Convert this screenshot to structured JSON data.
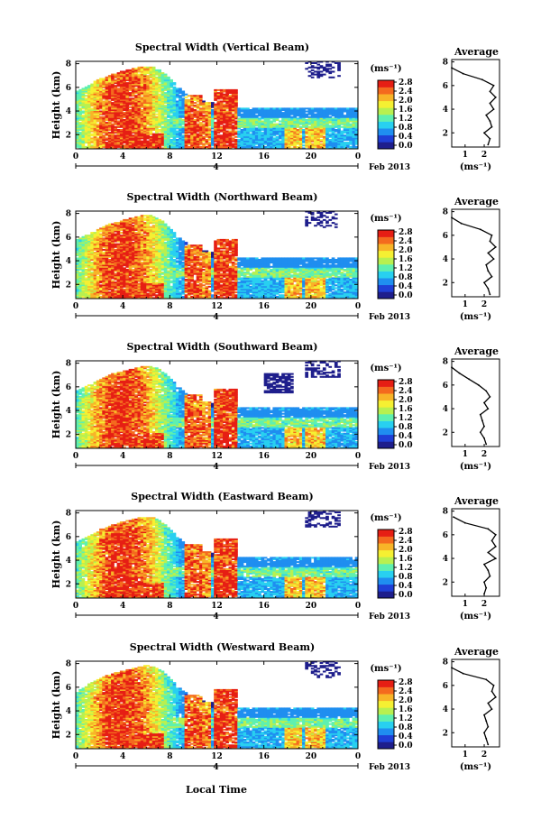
{
  "figure": {
    "x_label": "Local Time",
    "date_label": "Feb 2013",
    "day_marker": "4",
    "y_label": "Height (km)",
    "unit_label": "(ms⁻¹)",
    "average_title": "Average",
    "cbar_ticks": [
      "2.8",
      "2.4",
      "2.0",
      "1.6",
      "1.2",
      "0.8",
      "0.4",
      "0.0"
    ]
  },
  "colormap": [
    "#1e1e8c",
    "#1f3fd6",
    "#1f8ef0",
    "#28d0f0",
    "#5ef0b0",
    "#b8f050",
    "#f5f032",
    "#f8b428",
    "#f46a1e",
    "#e61e14"
  ],
  "chart_data": [
    {
      "type": "heatmap",
      "title": "Spectral Width (Vertical Beam)",
      "x_ticks": [
        "0",
        "4",
        "8",
        "12",
        "16",
        "20",
        "0"
      ],
      "y_ticks": [
        "2",
        "4",
        "6",
        "8"
      ],
      "xlim": [
        0,
        24
      ],
      "ylim": [
        0.8,
        8.2
      ],
      "colorbar": {
        "label": "(ms⁻¹)",
        "range": [
          0.0,
          2.8
        ]
      },
      "profile": {
        "title": "Average",
        "xlabel": "(ms⁻¹)",
        "x_ticks": [
          "1",
          "2"
        ],
        "y_ticks": [
          "2",
          "4",
          "6",
          "8"
        ],
        "height": [
          1.0,
          1.5,
          2.0,
          2.5,
          3.0,
          3.5,
          4.0,
          4.5,
          5.0,
          5.5,
          6.0,
          6.5,
          7.0,
          7.5
        ],
        "width": [
          2.2,
          2.3,
          2.0,
          2.4,
          2.3,
          2.1,
          2.5,
          2.3,
          2.6,
          2.3,
          2.5,
          1.9,
          0.9,
          0.3
        ]
      }
    },
    {
      "type": "heatmap",
      "title": "Spectral Width (Northward Beam)",
      "x_ticks": [
        "0",
        "4",
        "8",
        "12",
        "16",
        "20",
        "0"
      ],
      "y_ticks": [
        "2",
        "4",
        "6",
        "8"
      ],
      "xlim": [
        0,
        24
      ],
      "ylim": [
        0.8,
        8.2
      ],
      "colorbar": {
        "label": "(ms⁻¹)",
        "range": [
          0.0,
          2.8
        ]
      },
      "profile": {
        "title": "Average",
        "xlabel": "(ms⁻¹)",
        "x_ticks": [
          "1",
          "2"
        ],
        "y_ticks": [
          "2",
          "4",
          "6",
          "8"
        ],
        "height": [
          1.0,
          1.5,
          2.0,
          2.5,
          3.0,
          3.5,
          4.0,
          4.5,
          5.0,
          5.5,
          6.0,
          6.5,
          7.0,
          7.5
        ],
        "width": [
          2.3,
          2.2,
          2.0,
          2.4,
          2.2,
          2.1,
          2.5,
          2.2,
          2.6,
          2.3,
          2.4,
          1.8,
          0.8,
          0.3
        ]
      }
    },
    {
      "type": "heatmap",
      "title": "Spectral Width (Southward Beam)",
      "x_ticks": [
        "0",
        "4",
        "8",
        "12",
        "16",
        "20",
        "0"
      ],
      "y_ticks": [
        "2",
        "4",
        "6",
        "8"
      ],
      "xlim": [
        0,
        24
      ],
      "ylim": [
        0.8,
        8.2
      ],
      "colorbar": {
        "label": "(ms⁻¹)",
        "range": [
          0.0,
          2.8
        ]
      },
      "profile": {
        "title": "Average",
        "xlabel": "(ms⁻¹)",
        "x_ticks": [
          "1",
          "2"
        ],
        "y_ticks": [
          "2",
          "4",
          "6",
          "8"
        ],
        "height": [
          1.0,
          1.5,
          2.0,
          2.5,
          3.0,
          3.5,
          4.0,
          4.5,
          5.0,
          5.5,
          6.0,
          6.5,
          7.0,
          7.5
        ],
        "width": [
          2.1,
          2.0,
          1.8,
          2.0,
          1.9,
          1.8,
          2.2,
          2.0,
          2.3,
          2.1,
          1.7,
          1.2,
          0.7,
          0.3
        ]
      }
    },
    {
      "type": "heatmap",
      "title": "Spectral Width (Eastward Beam)",
      "x_ticks": [
        "0",
        "4",
        "8",
        "12",
        "16",
        "20",
        "0"
      ],
      "y_ticks": [
        "2",
        "4",
        "6",
        "8"
      ],
      "xlim": [
        0,
        24
      ],
      "ylim": [
        0.8,
        8.2
      ],
      "colorbar": {
        "label": "(ms⁻¹)",
        "range": [
          0.0,
          2.8
        ]
      },
      "profile": {
        "title": "Average",
        "xlabel": "(ms⁻¹)",
        "x_ticks": [
          "1",
          "2"
        ],
        "y_ticks": [
          "2",
          "4",
          "6",
          "8"
        ],
        "height": [
          1.0,
          1.5,
          2.0,
          2.5,
          3.0,
          3.5,
          4.0,
          4.5,
          5.0,
          5.5,
          6.0,
          6.5,
          7.0,
          7.5
        ],
        "width": [
          2.0,
          2.1,
          2.0,
          2.3,
          2.2,
          2.0,
          2.6,
          2.2,
          2.6,
          2.4,
          2.6,
          2.2,
          1.0,
          0.4
        ]
      }
    },
    {
      "type": "heatmap",
      "title": "Spectral Width (Westward Beam)",
      "x_ticks": [
        "0",
        "4",
        "8",
        "12",
        "16",
        "20",
        "0"
      ],
      "y_ticks": [
        "2",
        "4",
        "6",
        "8"
      ],
      "xlim": [
        0,
        24
      ],
      "ylim": [
        0.8,
        8.2
      ],
      "colorbar": {
        "label": "(ms⁻¹)",
        "range": [
          0.0,
          2.8
        ]
      },
      "profile": {
        "title": "Average",
        "xlabel": "(ms⁻¹)",
        "x_ticks": [
          "1",
          "2"
        ],
        "y_ticks": [
          "2",
          "4",
          "6",
          "8"
        ],
        "height": [
          1.0,
          1.5,
          2.0,
          2.5,
          3.0,
          3.5,
          4.0,
          4.5,
          5.0,
          5.5,
          6.0,
          6.5,
          7.0,
          7.5
        ],
        "width": [
          2.2,
          2.1,
          2.0,
          2.2,
          2.1,
          2.0,
          2.4,
          2.2,
          2.6,
          2.4,
          2.5,
          2.1,
          0.9,
          0.3
        ]
      }
    }
  ]
}
